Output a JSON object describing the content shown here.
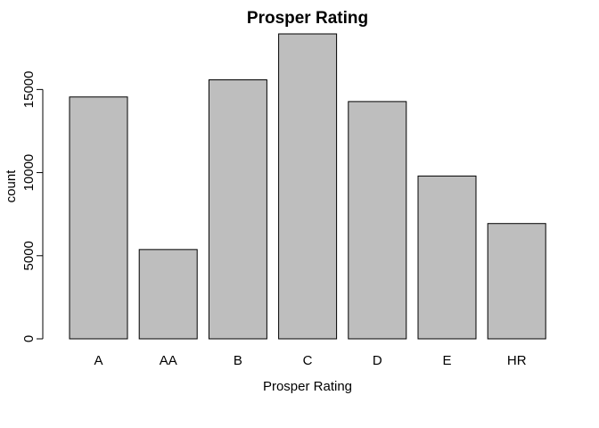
{
  "chart_data": {
    "type": "bar",
    "title": "Prosper Rating",
    "xlabel": "Prosper Rating",
    "ylabel": "count",
    "categories": [
      "A",
      "AA",
      "B",
      "C",
      "D",
      "E",
      "HR"
    ],
    "values": [
      14550,
      5372,
      15581,
      18345,
      14274,
      9795,
      6935
    ],
    "ylim": [
      0,
      18345
    ],
    "yticks": [
      0,
      5000,
      10000,
      15000
    ],
    "ytick_labels": [
      "0",
      "5000",
      "10000",
      "15000"
    ],
    "bar_color": "#bebebe",
    "grid": false,
    "legend": "none"
  }
}
